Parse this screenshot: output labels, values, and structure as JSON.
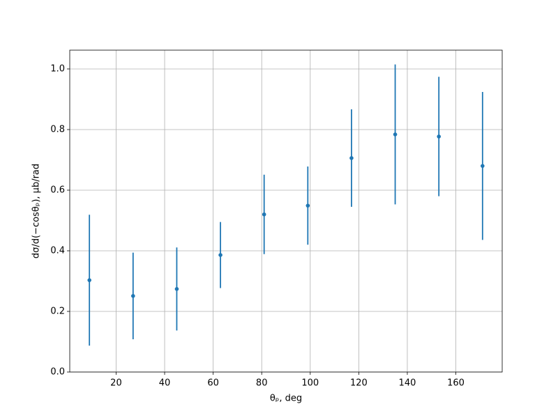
{
  "chart_data": {
    "type": "errorbar",
    "xlabel": "θₚ, deg",
    "ylabel": "dσ/d(−cosθₚ), µb/rad",
    "x": [
      9,
      27,
      45,
      63,
      81,
      99,
      117,
      135,
      153,
      171
    ],
    "series": [
      {
        "color": "#1f77b4",
        "values": [
          0.303,
          0.251,
          0.274,
          0.386,
          0.52,
          0.549,
          0.706,
          0.784,
          0.777,
          0.68
        ],
        "errors": [
          0.216,
          0.143,
          0.137,
          0.109,
          0.131,
          0.129,
          0.161,
          0.231,
          0.197,
          0.244
        ]
      }
    ],
    "xlim": [
      0.9,
      179.1
    ],
    "ylim": [
      0,
      1.062
    ],
    "xticks": [
      20,
      40,
      60,
      80,
      100,
      120,
      140,
      160
    ],
    "yticks": [
      {
        "value": 0,
        "label": "0.0"
      },
      {
        "value": 0.2,
        "label": "0.2"
      },
      {
        "value": 0.4,
        "label": "0.4"
      },
      {
        "value": 0.6,
        "label": "0.6"
      },
      {
        "value": 0.8,
        "label": "0.8"
      },
      {
        "value": 1.0,
        "label": "1.0"
      }
    ],
    "grid": true
  }
}
